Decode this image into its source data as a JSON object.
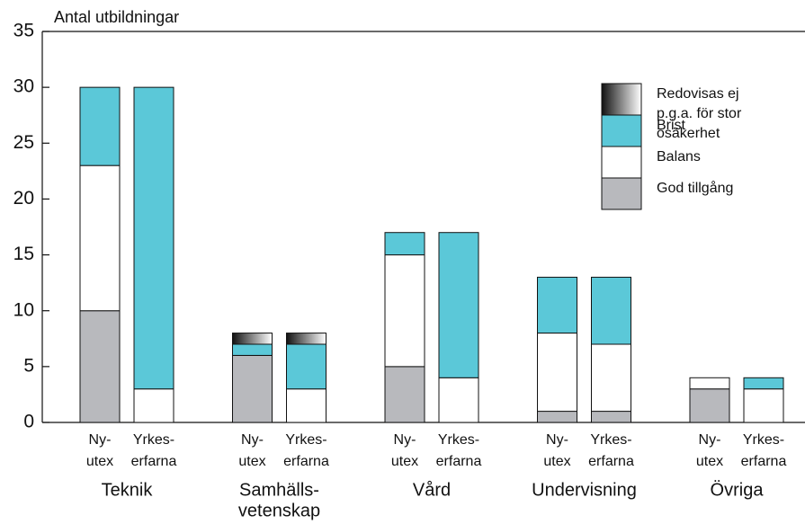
{
  "chart_data": {
    "type": "bar",
    "stacked": true,
    "y_label": "Antal utbildningar",
    "ylim": [
      0,
      35
    ],
    "yticks": [
      0,
      5,
      10,
      15,
      20,
      25,
      30,
      35
    ],
    "groups": [
      {
        "label": [
          "Teknik"
        ],
        "categories": [
          [
            "Ny-",
            "utex"
          ],
          [
            "Yrkes-",
            "erfarna"
          ]
        ]
      },
      {
        "label": [
          "Samhälls-",
          "vetenskap"
        ],
        "categories": [
          [
            "Ny-",
            "utex"
          ],
          [
            "Yrkes-",
            "erfarna"
          ]
        ]
      },
      {
        "label": [
          "Vård"
        ],
        "categories": [
          [
            "Ny-",
            "utex"
          ],
          [
            "Yrkes-",
            "erfarna"
          ]
        ]
      },
      {
        "label": [
          "Undervisning"
        ],
        "categories": [
          [
            "Ny-",
            "utex"
          ],
          [
            "Yrkes-",
            "erfarna"
          ]
        ]
      },
      {
        "label": [
          "Övriga"
        ],
        "categories": [
          [
            "Ny-",
            "utex"
          ],
          [
            "Yrkes-",
            "erfarna"
          ]
        ]
      }
    ],
    "series": [
      {
        "name": [
          "God tillgång"
        ],
        "color": "#b8b9bd",
        "values": [
          10,
          0,
          6,
          0,
          5,
          0,
          1,
          1,
          3,
          0
        ]
      },
      {
        "name": [
          "Balans"
        ],
        "color": "#ffffff",
        "values": [
          13,
          3,
          0,
          3,
          10,
          4,
          7,
          6,
          1,
          3
        ]
      },
      {
        "name": [
          "Brist"
        ],
        "color": "#5bc8d8",
        "values": [
          7,
          27,
          1,
          4,
          2,
          13,
          5,
          6,
          0,
          1
        ]
      },
      {
        "name": [
          "Redovisas ej",
          "p.g.a. för stor",
          "osäkerhet"
        ],
        "color": [
          "#111111",
          "#ffffff"
        ],
        "values": [
          0,
          0,
          1,
          1,
          0,
          0,
          0,
          0,
          0,
          0
        ]
      }
    ]
  }
}
